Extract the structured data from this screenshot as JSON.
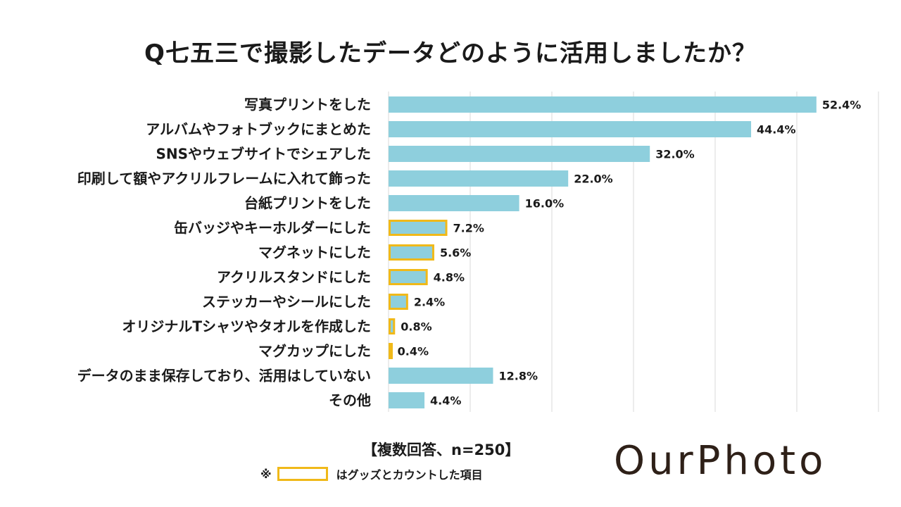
{
  "title": "Q七五三で撮影したデータどのように活用しましたか？",
  "note": "【複数回答、n=250】",
  "legend": {
    "prefix": "※",
    "text": "はグッズとカウントした項目",
    "highlight_color": "#f0b919"
  },
  "brand": {
    "logo_text": "OurPhoto"
  },
  "colors": {
    "bar": "#8ecfdd",
    "highlight": "#f0b919",
    "grid": "#d9d9d9"
  },
  "chart_data": {
    "type": "bar",
    "orientation": "horizontal",
    "title": "Q七五三で撮影したデータどのように活用しましたか？",
    "xlim": [
      0,
      60
    ],
    "unit": "%",
    "categories": [
      "写真プリントをした",
      "アルバムやフォトブックにまとめた",
      "SNSやウェブサイトでシェアした",
      "印刷して額やアクリルフレームに入れて飾った",
      "台紙プリントをした",
      "缶バッジやキーホルダーにした",
      "マグネットにした",
      "アクリルスタンドにした",
      "ステッカーやシールにした",
      "オリジナルTシャツやタオルを作成した",
      "マグカップにした",
      "データのまま保存しており、活用はしていない",
      "その他"
    ],
    "values": [
      52.4,
      44.4,
      32.0,
      22.0,
      16.0,
      7.2,
      5.6,
      4.8,
      2.4,
      0.8,
      0.4,
      12.8,
      4.4
    ],
    "value_labels": [
      "52.4%",
      "44.4%",
      "32.0%",
      "22.0%",
      "16.0%",
      "7.2%",
      "5.6%",
      "4.8%",
      "2.4%",
      "0.8%",
      "0.4%",
      "12.8%",
      "4.4%"
    ],
    "highlighted": [
      false,
      false,
      false,
      false,
      false,
      true,
      true,
      true,
      true,
      true,
      true,
      false,
      false
    ]
  }
}
